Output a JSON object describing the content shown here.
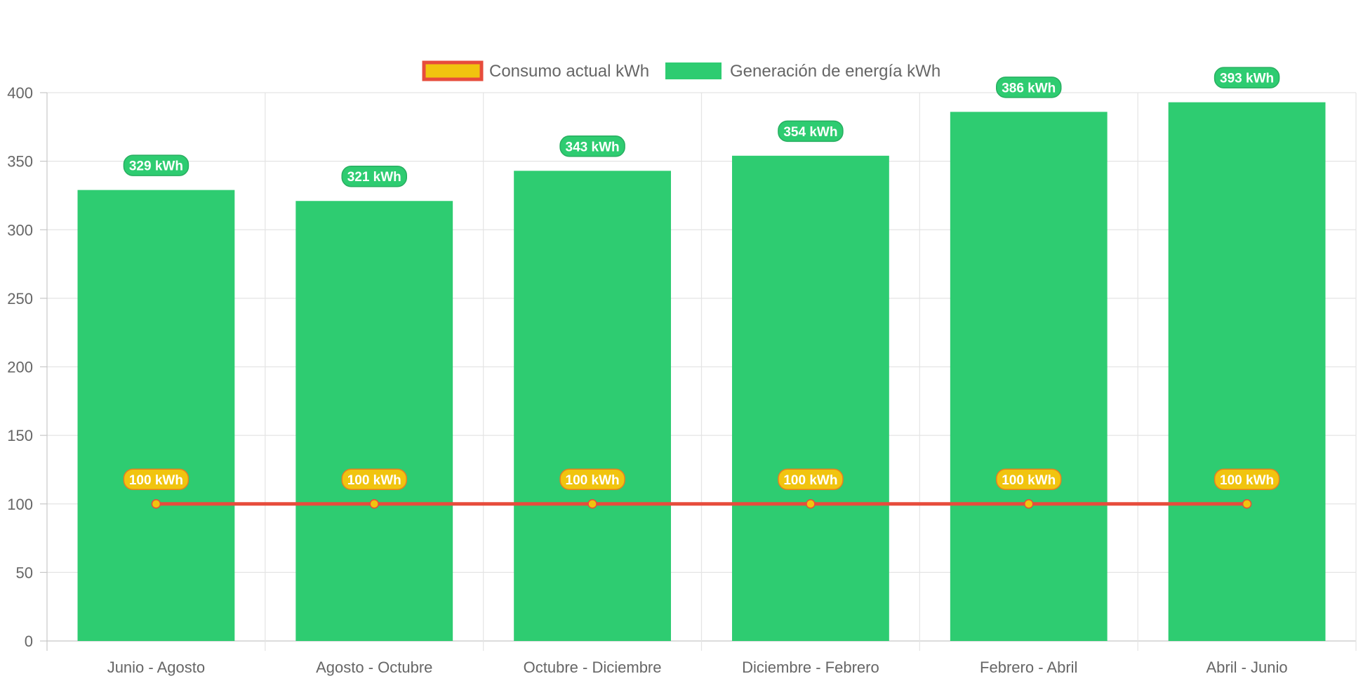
{
  "chart_data": {
    "type": "bar",
    "categories": [
      "Junio - Agosto",
      "Agosto - Octubre",
      "Octubre - Diciembre",
      "Diciembre - Febrero",
      "Febrero - Abril",
      "Abril - Junio"
    ],
    "series": [
      {
        "name": "Consumo actual kWh",
        "type": "line",
        "values": [
          100,
          100,
          100,
          100,
          100,
          100
        ],
        "labels": [
          "100 kWh",
          "100 kWh",
          "100 kWh",
          "100 kWh",
          "100 kWh",
          "100 kWh"
        ],
        "color": "#e74c3c",
        "fill": "#f1c40f"
      },
      {
        "name": "Generación de energía kWh",
        "type": "bar",
        "values": [
          329,
          321,
          343,
          354,
          386,
          393
        ],
        "labels": [
          "329 kWh",
          "321 kWh",
          "343 kWh",
          "354 kWh",
          "386 kWh",
          "393 kWh"
        ],
        "color": "#2ecc71"
      }
    ],
    "ylim": [
      0,
      400
    ],
    "yticks": [
      "0",
      "50",
      "100",
      "150",
      "200",
      "250",
      "300",
      "350",
      "400"
    ],
    "grid": true,
    "legend": "top-center",
    "title": "",
    "xlabel": "",
    "ylabel": ""
  }
}
